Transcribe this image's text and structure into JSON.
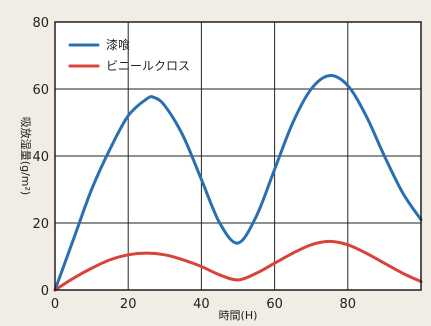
{
  "chart_data": {
    "type": "line",
    "title": "",
    "xlabel": "時間(H)",
    "ylabel": "吸放湿量(g/m²)",
    "xlim": [
      0,
      100
    ],
    "ylim": [
      0,
      80
    ],
    "x_ticks": [
      0,
      20,
      40,
      60,
      80
    ],
    "y_ticks": [
      0,
      20,
      40,
      60,
      80
    ],
    "grid": true,
    "legend_position": "top-left",
    "series": [
      {
        "name": "漆喰",
        "color": "#2b6fb3",
        "x": [
          0,
          5,
          10,
          15,
          20,
          25,
          27,
          30,
          35,
          40,
          45,
          50,
          55,
          60,
          65,
          70,
          75,
          80,
          85,
          90,
          95,
          100
        ],
        "y": [
          0,
          15,
          30,
          42,
          52,
          57,
          57.5,
          55,
          46,
          33,
          20,
          14,
          22,
          36,
          50,
          60,
          64,
          61,
          52,
          40,
          29,
          21
        ]
      },
      {
        "name": "ビニールクロス",
        "color": "#d9433a",
        "x": [
          0,
          5,
          10,
          15,
          20,
          25,
          30,
          35,
          40,
          45,
          50,
          55,
          60,
          65,
          70,
          75,
          80,
          85,
          90,
          95,
          100
        ],
        "y": [
          0,
          3.5,
          6.5,
          9,
          10.5,
          11,
          10.5,
          9,
          7,
          4.5,
          3,
          5,
          8,
          11,
          13.5,
          14.5,
          13.5,
          11,
          8,
          5,
          2.5
        ]
      }
    ]
  }
}
